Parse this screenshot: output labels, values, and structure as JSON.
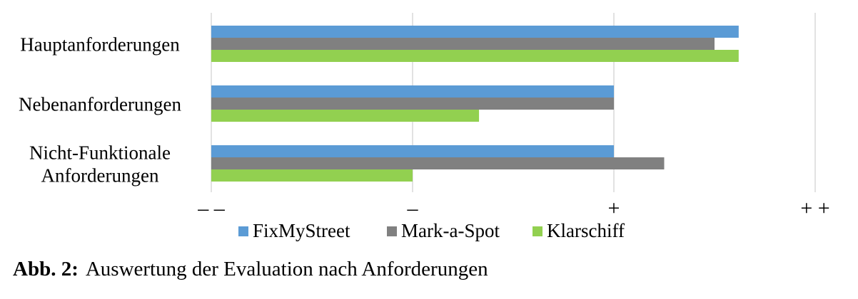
{
  "chart_data": {
    "type": "bar",
    "orientation": "horizontal",
    "categories": [
      [
        "Hauptanforderungen"
      ],
      [
        "Nebenanforderungen"
      ],
      [
        "Nicht-Funktionale",
        "Anforderungen"
      ]
    ],
    "series": [
      {
        "name": "FixMyStreet",
        "color": "#5b9bd5",
        "values": [
          2.62,
          2.0,
          2.0
        ]
      },
      {
        "name": "Mark-a-Spot",
        "color": "#808080",
        "values": [
          2.5,
          2.0,
          2.25
        ]
      },
      {
        "name": "Klarschiff",
        "color": "#92d050",
        "values": [
          2.62,
          1.33,
          1.0
        ]
      }
    ],
    "xlim": [
      0,
      3
    ],
    "xticks": [
      {
        "value": 0,
        "label": "– –"
      },
      {
        "value": 1,
        "label": "–"
      },
      {
        "value": 2,
        "label": "+"
      },
      {
        "value": 3,
        "label": "+ +"
      }
    ],
    "grid": true,
    "legend": "bottom"
  },
  "caption": {
    "number": "Abb. 2:",
    "text": "Auswertung der Evaluation nach Anforderungen"
  }
}
